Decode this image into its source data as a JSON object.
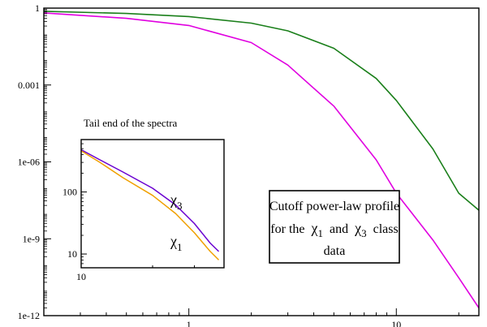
{
  "chart_data": [
    {
      "type": "line",
      "x_scale": "log",
      "y_scale": "log",
      "xlim": [
        0.2,
        25
      ],
      "ylim": [
        1e-12,
        1
      ],
      "x_ticks": [
        {
          "value": 1,
          "label": "1"
        },
        {
          "value": 10,
          "label": "10"
        }
      ],
      "y_ticks": [
        {
          "value": 1e-12,
          "label": "1e-12"
        },
        {
          "value": 1e-09,
          "label": "1e-9"
        },
        {
          "value": 1e-06,
          "label": "1e-06"
        },
        {
          "value": 0.001,
          "label": "0.001"
        },
        {
          "value": 1,
          "label": "1"
        }
      ],
      "series": [
        {
          "color": "#1a7f1a",
          "x": [
            0.2,
            0.5,
            1,
            2,
            3,
            5,
            8,
            10,
            15,
            20,
            25
          ],
          "y": [
            0.75,
            0.62,
            0.47,
            0.26,
            0.13,
            0.027,
            0.0018,
            0.00025,
            3.2e-06,
            6e-08,
            1.3e-08
          ]
        },
        {
          "color": "#e000e0",
          "x": [
            0.2,
            0.5,
            1,
            2,
            3,
            5,
            8,
            10,
            15,
            20,
            25
          ],
          "y": [
            0.65,
            0.4,
            0.21,
            0.045,
            0.006,
            0.00015,
            1.2e-06,
            6e-08,
            9e-10,
            3e-11,
            2e-12
          ]
        }
      ],
      "annotation": {
        "line1": "Cutoff power-law profile",
        "line2_prefix": "for the",
        "chi1_symbol": "χ",
        "chi1_sub": "1",
        "line2_mid": "and",
        "chi3_symbol": "χ",
        "chi3_sub": "3",
        "line2_suffix": "class",
        "line3": "data"
      }
    },
    {
      "type": "line",
      "title": "Tail end of the spectra",
      "x_scale": "log",
      "y_scale": "log",
      "xlim": [
        10,
        40
      ],
      "ylim": [
        6,
        700
      ],
      "x_ticks": [
        {
          "value": 10,
          "label": "10"
        }
      ],
      "y_ticks": [
        {
          "value": 100,
          "label": "100"
        },
        {
          "value": 10,
          "label": "10"
        }
      ],
      "series": [
        {
          "name": "χ3",
          "label_symbol": "χ",
          "label_sub": "3",
          "color": "#6a00d0",
          "x": [
            10,
            12,
            15,
            20,
            25,
            30,
            35,
            38
          ],
          "y": [
            480,
            330,
            210,
            115,
            62,
            31,
            15,
            11
          ]
        },
        {
          "name": "χ1",
          "label_symbol": "χ",
          "label_sub": "1",
          "color": "#f0a000",
          "x": [
            10,
            12,
            15,
            20,
            25,
            30,
            35,
            38
          ],
          "y": [
            460,
            300,
            170,
            88,
            45,
            22,
            11,
            8
          ]
        }
      ]
    }
  ]
}
